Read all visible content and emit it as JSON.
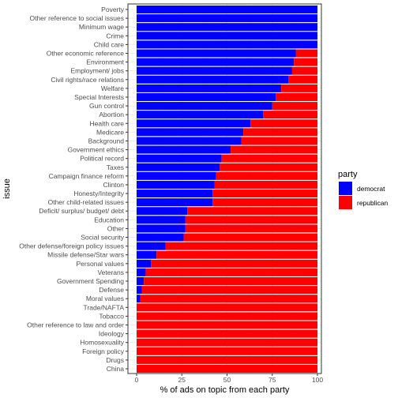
{
  "colors": {
    "democrat": "#0000ff",
    "republican": "#ff0000",
    "grid": "#ebebeb",
    "panel_border": "#333333"
  },
  "chart_data": {
    "type": "bar",
    "orientation": "horizontal",
    "stacked": true,
    "title": "",
    "xlabel": "% of ads on topic from each party",
    "ylabel": "issue",
    "xlim": [
      0,
      100
    ],
    "xticks": [
      0,
      25,
      50,
      75,
      100
    ],
    "grid": true,
    "legend": {
      "title": "party",
      "position": "right"
    },
    "categories": [
      "Poverty",
      "Other reference to social issues",
      "Minimum wage",
      "Crime",
      "Child care",
      "Other economic reference",
      "Environment",
      "Employment/ jobs",
      "Civil rights/race relations",
      "Welfare",
      "Special Interests",
      "Gun control",
      "Abortion",
      "Health care",
      "Medicare",
      "Background",
      "Government ethics",
      "Political record",
      "Taxes",
      "Campaign finance reform",
      "Clinton",
      "Honesty/Integrity",
      "Other child-related issues",
      "Deficit/ surplus/ budget/ debt",
      "Education",
      "Other",
      "Social security",
      "Other defense/foreign policy issues",
      "Missile defense/Star wars",
      "Personal values",
      "Veterans",
      "Government Spending",
      "Defense",
      "Moral values",
      "Trade/NAFTA",
      "Tobacco",
      "Other reference to law and order",
      "Ideology",
      "Homosexuality",
      "Foreign policy",
      "Drugs",
      "China"
    ],
    "series": [
      {
        "name": "democrat",
        "values": [
          100,
          100,
          100,
          100,
          100,
          88,
          87,
          86,
          84,
          80,
          77,
          75,
          70,
          63,
          59,
          58,
          52,
          47,
          46,
          44,
          43,
          42,
          42,
          28,
          27,
          27,
          26,
          16,
          11,
          8,
          5,
          4,
          3,
          2,
          0,
          0,
          0,
          0,
          0,
          0,
          0,
          0
        ]
      },
      {
        "name": "republican",
        "values": [
          0,
          0,
          0,
          0,
          0,
          12,
          13,
          14,
          16,
          20,
          23,
          25,
          30,
          37,
          41,
          42,
          48,
          53,
          54,
          56,
          57,
          58,
          58,
          72,
          73,
          73,
          74,
          84,
          89,
          92,
          95,
          96,
          97,
          98,
          100,
          100,
          100,
          100,
          100,
          100,
          100,
          100
        ]
      }
    ]
  }
}
